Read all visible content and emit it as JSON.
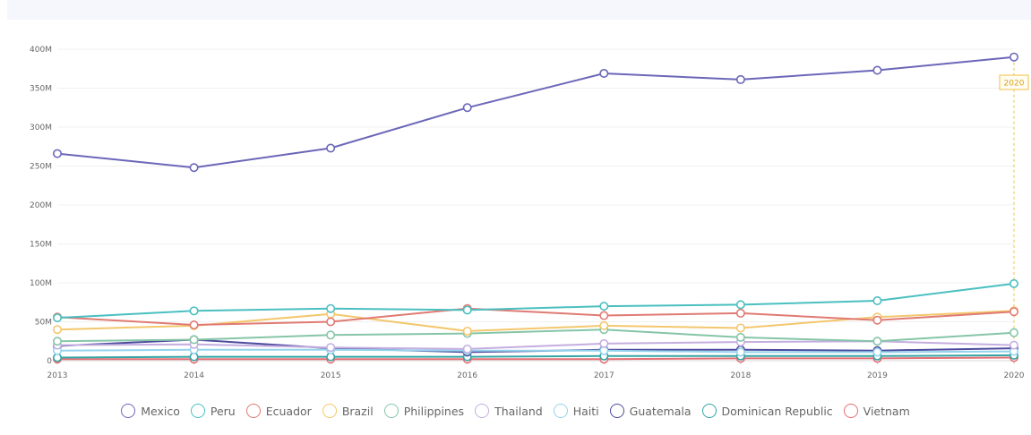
{
  "chart_data": {
    "type": "line",
    "title": "",
    "xlabel": "",
    "ylabel": "",
    "x": [
      "2013",
      "2014",
      "2015",
      "2016",
      "2017",
      "2018",
      "2019",
      "2020"
    ],
    "ylim": [
      0,
      400000000
    ],
    "yticks": [
      {
        "value": 0,
        "label": "0"
      },
      {
        "value": 50000000,
        "label": "50M"
      },
      {
        "value": 100000000,
        "label": "100M"
      },
      {
        "value": 150000000,
        "label": "150M"
      },
      {
        "value": 200000000,
        "label": "200M"
      },
      {
        "value": 250000000,
        "label": "250M"
      },
      {
        "value": 300000000,
        "label": "300M"
      },
      {
        "value": 350000000,
        "label": "350M"
      },
      {
        "value": 400000000,
        "label": "400M"
      }
    ],
    "grid": true,
    "legend_position": "bottom",
    "hover_marker": {
      "x": "2020",
      "label": "2020",
      "color": "#f0c040"
    },
    "series": [
      {
        "name": "Mexico",
        "color": "#6b67b8",
        "values": [
          266000000,
          248000000,
          273000000,
          325000000,
          369000000,
          361000000,
          373000000,
          390000000
        ]
      },
      {
        "name": "Peru",
        "color": "#4bbfc0",
        "values": [
          55000000,
          64000000,
          67000000,
          65000000,
          70000000,
          72000000,
          77000000,
          99000000
        ]
      },
      {
        "name": "Ecuador",
        "color": "#e07a73",
        "values": [
          56000000,
          46000000,
          50000000,
          67000000,
          58000000,
          61000000,
          52000000,
          63000000
        ]
      },
      {
        "name": "Brazil",
        "color": "#f3c76d",
        "values": [
          40000000,
          45000000,
          60000000,
          38000000,
          45000000,
          42000000,
          56000000,
          64000000
        ]
      },
      {
        "name": "Philippines",
        "color": "#86c5a8",
        "values": [
          25000000,
          27000000,
          33000000,
          35000000,
          40000000,
          30000000,
          25000000,
          36000000
        ]
      },
      {
        "name": "Thailand",
        "color": "#c4aee0",
        "values": [
          20000000,
          21000000,
          17000000,
          15000000,
          22000000,
          24000000,
          25000000,
          20000000
        ]
      },
      {
        "name": "Haiti",
        "color": "#94d3ec",
        "values": [
          13000000,
          14000000,
          14000000,
          13000000,
          13000000,
          11000000,
          11000000,
          12000000
        ]
      },
      {
        "name": "Guatemala",
        "color": "#4d4a9e",
        "values": [
          19000000,
          27000000,
          16000000,
          11000000,
          14000000,
          14000000,
          13000000,
          16000000
        ]
      },
      {
        "name": "Dominican Republic",
        "color": "#35a4a4",
        "values": [
          4000000,
          5000000,
          5000000,
          5000000,
          6000000,
          6000000,
          6000000,
          7000000
        ]
      },
      {
        "name": "Vietnam",
        "color": "#e46e74",
        "values": [
          2000000,
          2000000,
          2000000,
          2000000,
          2000000,
          3000000,
          3000000,
          4000000
        ]
      }
    ]
  }
}
